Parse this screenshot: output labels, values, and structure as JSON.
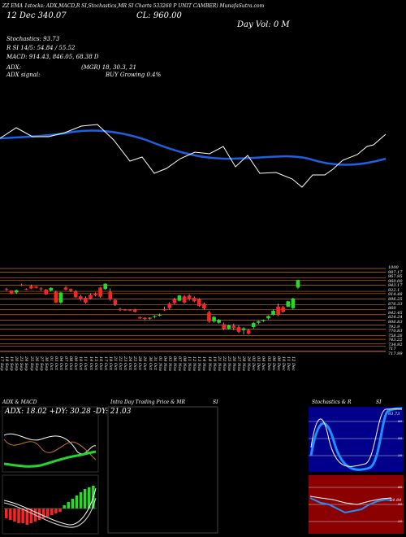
{
  "header": {
    "line1": "ZZ EMA 1stocks: ADX,MACD,R  SI,Stochastics,MR  SI Charts 533260  P  UNIT CAMBER) MunafaSutra.com",
    "date_value": "12 Dec  340.07",
    "close": "CL: 960.00",
    "day_vol": "Day Vol: 0   M",
    "stoch": "Stochastics: 93.73",
    "rsi": "R   SI 14/5: 54.84 / 55.52",
    "macd": "MACD: 914.43, 846.05, 68.38  D",
    "adx": "ADX:",
    "mgr": "(MGR) 18, 30.3, 21",
    "adx_signal": "ADX  signal:",
    "buy": "BUY Growing 0.4%"
  },
  "panels": {
    "adx_macd_title": "ADX  & MACD",
    "adx_values": "ADX: 18.02 +DY: 30.28 -DY: 21.03",
    "intraday_title": "Intra  Day Trading Price  & MR",
    "intraday_si": "SI",
    "stoch_title": "Stochastics & R",
    "stoch_si": "SI",
    "stoch_value": "93.73",
    "rsi_value": "54.84",
    "stoch_axis": [
      "80",
      "50",
      "20"
    ],
    "rsi_axis": [
      "80",
      "50",
      "20"
    ]
  },
  "chart_data": {
    "type": "candlestick",
    "dates": [
      "17 Sep",
      "18 Sep",
      "19 Sep",
      "20 Sep",
      "23 Sep",
      "24 Sep",
      "25 Sep",
      "26 Sep",
      "27 Sep",
      "30 Sep",
      "01 Oct",
      "03 Oct",
      "04 Oct",
      "07 Oct",
      "08 Oct",
      "09 Oct",
      "10 Oct",
      "11 Oct",
      "14 Oct",
      "15 Oct",
      "16 Oct",
      "17 Oct",
      "18 Oct",
      "21 Oct",
      "22 Oct",
      "23 Oct",
      "24 Oct",
      "25 Oct",
      "28 Oct",
      "29 Oct",
      "30 Oct",
      "31 Oct",
      "01 Nov",
      "04 Nov",
      "05 Nov",
      "06 Nov",
      "07 Nov",
      "08 Nov",
      "11 Nov",
      "12 Nov",
      "13 Nov",
      "14 Nov",
      "18 Nov",
      "19 Nov",
      "21 Nov",
      "22 Nov",
      "25 Nov",
      "26 Nov",
      "27 Nov",
      "28 Nov",
      "29 Nov",
      "02 Dec",
      "03 Dec",
      "04 Dec",
      "05 Dec",
      "06 Dec",
      "09 Dec",
      "10 Dec",
      "11 Dec",
      "12 Dec"
    ],
    "price_labels": [
      "1000",
      "987.17",
      "967.95",
      "960.00",
      "943.17",
      "922.1",
      "914.48",
      "896.25",
      "876.33",
      "860",
      "842.45",
      "824.24",
      "806.83",
      "792.9",
      "770.83",
      "758.26",
      "743.22",
      "734.92",
      "717",
      "717.99"
    ],
    "candles": [
      [
        930,
        934,
        924,
        928
      ],
      [
        925,
        926,
        912,
        914
      ],
      [
        918,
        928,
        914,
        926
      ],
      [
        945,
        948,
        940,
        942
      ],
      [
        930,
        932,
        926,
        928
      ],
      [
        940,
        944,
        930,
        932
      ],
      [
        938,
        940,
        932,
        934
      ],
      [
        932,
        936,
        924,
        930
      ],
      [
        928,
        930,
        910,
        912
      ],
      [
        925,
        936,
        922,
        934
      ],
      [
        920,
        924,
        882,
        884
      ],
      [
        884,
        920,
        880,
        918
      ],
      [
        935,
        940,
        925,
        928
      ],
      [
        930,
        932,
        920,
        924
      ],
      [
        922,
        926,
        900,
        902
      ],
      [
        905,
        910,
        890,
        894
      ],
      [
        900,
        905,
        880,
        884
      ],
      [
        910,
        915,
        895,
        897
      ],
      [
        915,
        918,
        905,
        909
      ],
      [
        935,
        937,
        900,
        904
      ],
      [
        930,
        950,
        928,
        948
      ],
      [
        920,
        932,
        890,
        895
      ],
      [
        892,
        896,
        872,
        878
      ],
      [
        862,
        866,
        855,
        858
      ],
      [
        860,
        862,
        856,
        857
      ],
      [
        858,
        860,
        856,
        857
      ],
      [
        860,
        862,
        850,
        852
      ],
      [
        834,
        836,
        828,
        830
      ],
      [
        832,
        834,
        825,
        828
      ],
      [
        830,
        834,
        826,
        832
      ],
      [
        835,
        840,
        830,
        838
      ],
      [
        840,
        846,
        837,
        842
      ],
      [
        860,
        870,
        855,
        858
      ],
      [
        880,
        885,
        860,
        865
      ],
      [
        895,
        900,
        878,
        882
      ],
      [
        890,
        910,
        888,
        908
      ],
      [
        905,
        910,
        880,
        884
      ],
      [
        908,
        912,
        890,
        896
      ],
      [
        900,
        905,
        885,
        888
      ],
      [
        895,
        898,
        870,
        872
      ],
      [
        880,
        884,
        860,
        864
      ],
      [
        850,
        856,
        815,
        820
      ],
      [
        820,
        838,
        815,
        835
      ],
      [
        815,
        828,
        812,
        825
      ],
      [
        810,
        816,
        790,
        794
      ],
      [
        795,
        808,
        792,
        806
      ],
      [
        804,
        812,
        790,
        798
      ],
      [
        800,
        806,
        780,
        784
      ],
      [
        790,
        800,
        775,
        796
      ],
      [
        790,
        794,
        775,
        778
      ],
      [
        800,
        818,
        795,
        814
      ],
      [
        815,
        822,
        810,
        820
      ],
      [
        822,
        826,
        818,
        824
      ],
      [
        830,
        840,
        826,
        838
      ],
      [
        842,
        860,
        840,
        856
      ],
      [
        870,
        880,
        838,
        842
      ],
      [
        868,
        872,
        850,
        853
      ],
      [
        870,
        890,
        868,
        888
      ],
      [
        865,
        900,
        860,
        898
      ],
      [
        935,
        962,
        930,
        960
      ]
    ],
    "ema_price_blue": "smooth moving average (upper chart, white/blue lines)",
    "adx": 18.02,
    "plus_di": 30.28,
    "minus_di": 21.03,
    "stochastics": 93.73,
    "rsi": 54.84
  }
}
